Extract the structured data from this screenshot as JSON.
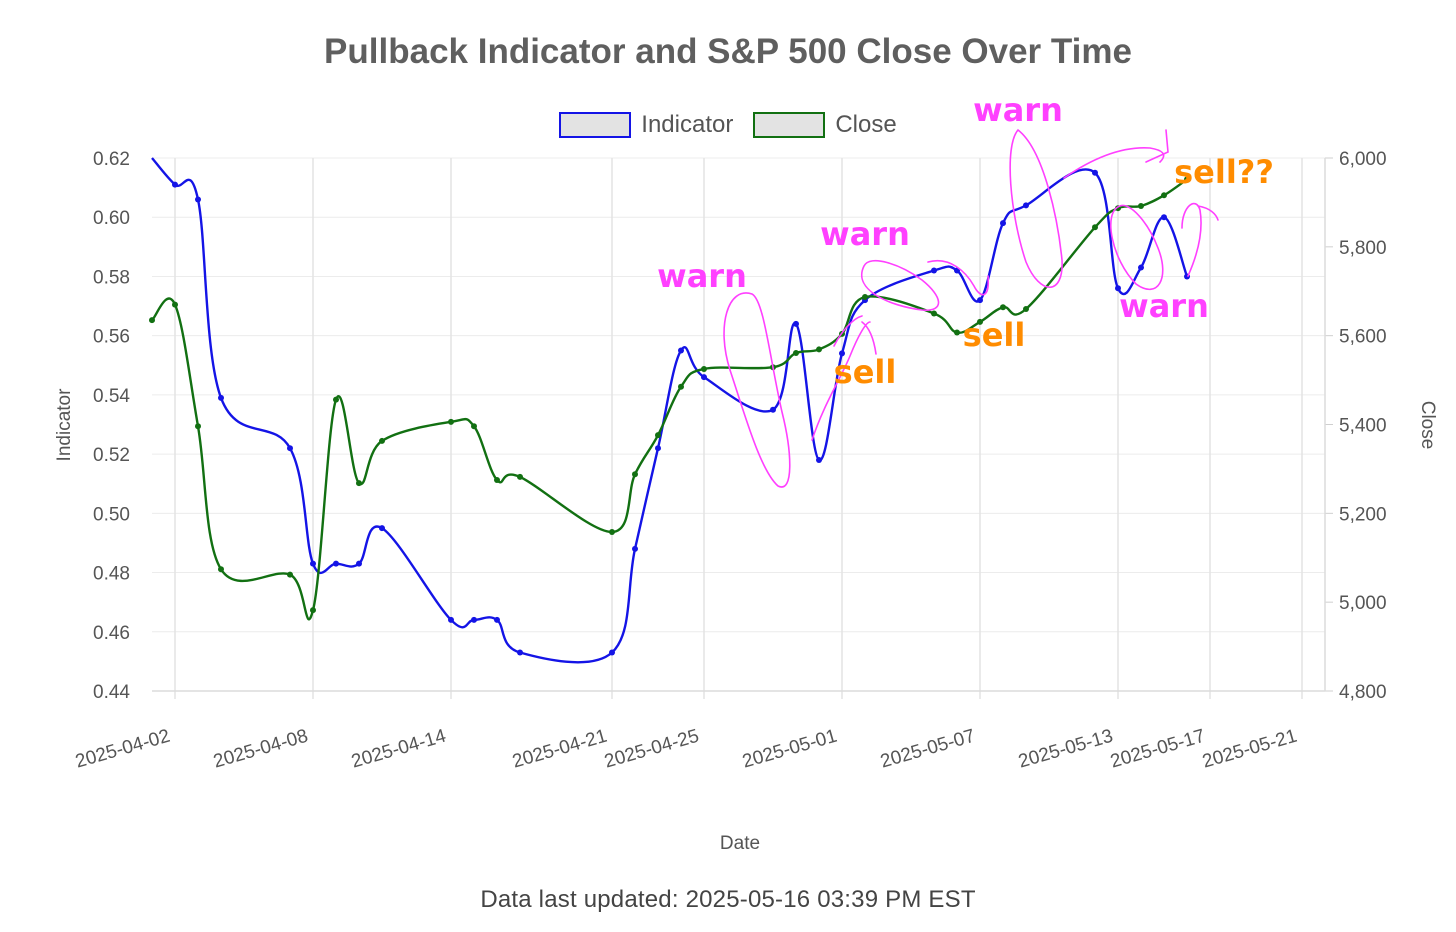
{
  "chart_data": {
    "type": "line",
    "title": "Pullback Indicator and S&P 500 Close Over Time",
    "xlabel": "Date",
    "ylabel_left": "Indicator",
    "ylabel_right": "Close",
    "x": [
      "2025-04-01",
      "2025-04-02",
      "2025-04-03",
      "2025-04-04",
      "2025-04-07",
      "2025-04-08",
      "2025-04-09",
      "2025-04-10",
      "2025-04-11",
      "2025-04-14",
      "2025-04-15",
      "2025-04-16",
      "2025-04-17",
      "2025-04-21",
      "2025-04-22",
      "2025-04-23",
      "2025-04-24",
      "2025-04-25",
      "2025-04-28",
      "2025-04-29",
      "2025-04-30",
      "2025-05-01",
      "2025-05-02",
      "2025-05-05",
      "2025-05-06",
      "2025-05-07",
      "2025-05-08",
      "2025-05-09",
      "2025-05-12",
      "2025-05-13",
      "2025-05-14",
      "2025-05-15",
      "2025-05-16"
    ],
    "series": [
      {
        "name": "Indicator",
        "axis": "left",
        "color": "#1414e6",
        "values": [
          0.62,
          0.611,
          0.606,
          0.539,
          0.522,
          0.483,
          0.483,
          0.483,
          0.495,
          0.464,
          0.464,
          0.464,
          0.453,
          0.453,
          0.488,
          0.522,
          0.555,
          0.546,
          0.535,
          0.564,
          0.518,
          0.554,
          0.572,
          0.582,
          0.582,
          0.572,
          0.598,
          0.604,
          0.615,
          0.576,
          0.583,
          0.6,
          0.58
        ]
      },
      {
        "name": "Close",
        "axis": "right",
        "color": "#127012",
        "values": [
          5635,
          5670,
          5396,
          5074,
          5062,
          4982,
          5456,
          5268,
          5363,
          5406,
          5396,
          5275,
          5282,
          5158,
          5288,
          5376,
          5485,
          5525,
          5529,
          5561,
          5569,
          5604,
          5687,
          5650,
          5607,
          5631,
          5664,
          5660,
          5844,
          5887,
          5892,
          5916,
          5952
        ]
      }
    ],
    "xlim": [
      "2025-04-01",
      "2025-05-22"
    ],
    "ylim_left": [
      0.44,
      0.62
    ],
    "ylim_right": [
      4800,
      6000
    ],
    "x_ticks": [
      "2025-04-02",
      "2025-04-08",
      "2025-04-14",
      "2025-04-21",
      "2025-04-25",
      "2025-05-01",
      "2025-05-07",
      "2025-05-13",
      "2025-05-17",
      "2025-05-21"
    ],
    "y_ticks_left": [
      "0.44",
      "0.46",
      "0.48",
      "0.50",
      "0.52",
      "0.54",
      "0.56",
      "0.58",
      "0.60",
      "0.62"
    ],
    "y_ticks_right": [
      "4,800",
      "5,000",
      "5,200",
      "5,400",
      "5,600",
      "5,800",
      "6,000"
    ],
    "grid": true,
    "legend": "top-center",
    "annotations": [
      {
        "text": "warn",
        "color": "#ff40ff",
        "near": "2025-04-29"
      },
      {
        "text": "warn",
        "color": "#ff40ff",
        "near": "2025-05-05"
      },
      {
        "text": "warn",
        "color": "#ff40ff",
        "near": "2025-05-12"
      },
      {
        "text": "warn",
        "color": "#ff40ff",
        "near": "2025-05-15"
      },
      {
        "text": "sell",
        "color": "#ff8c00",
        "near": "2025-05-05"
      },
      {
        "text": "sell",
        "color": "#ff8c00",
        "near": "2025-05-09"
      },
      {
        "text": "sell??",
        "color": "#ff8c00",
        "near": "2025-05-16"
      }
    ]
  },
  "legend": {
    "indicator_label": "Indicator",
    "close_label": "Close"
  },
  "footer": {
    "text": "Data last updated: 2025-05-16 03:39 PM EST"
  }
}
